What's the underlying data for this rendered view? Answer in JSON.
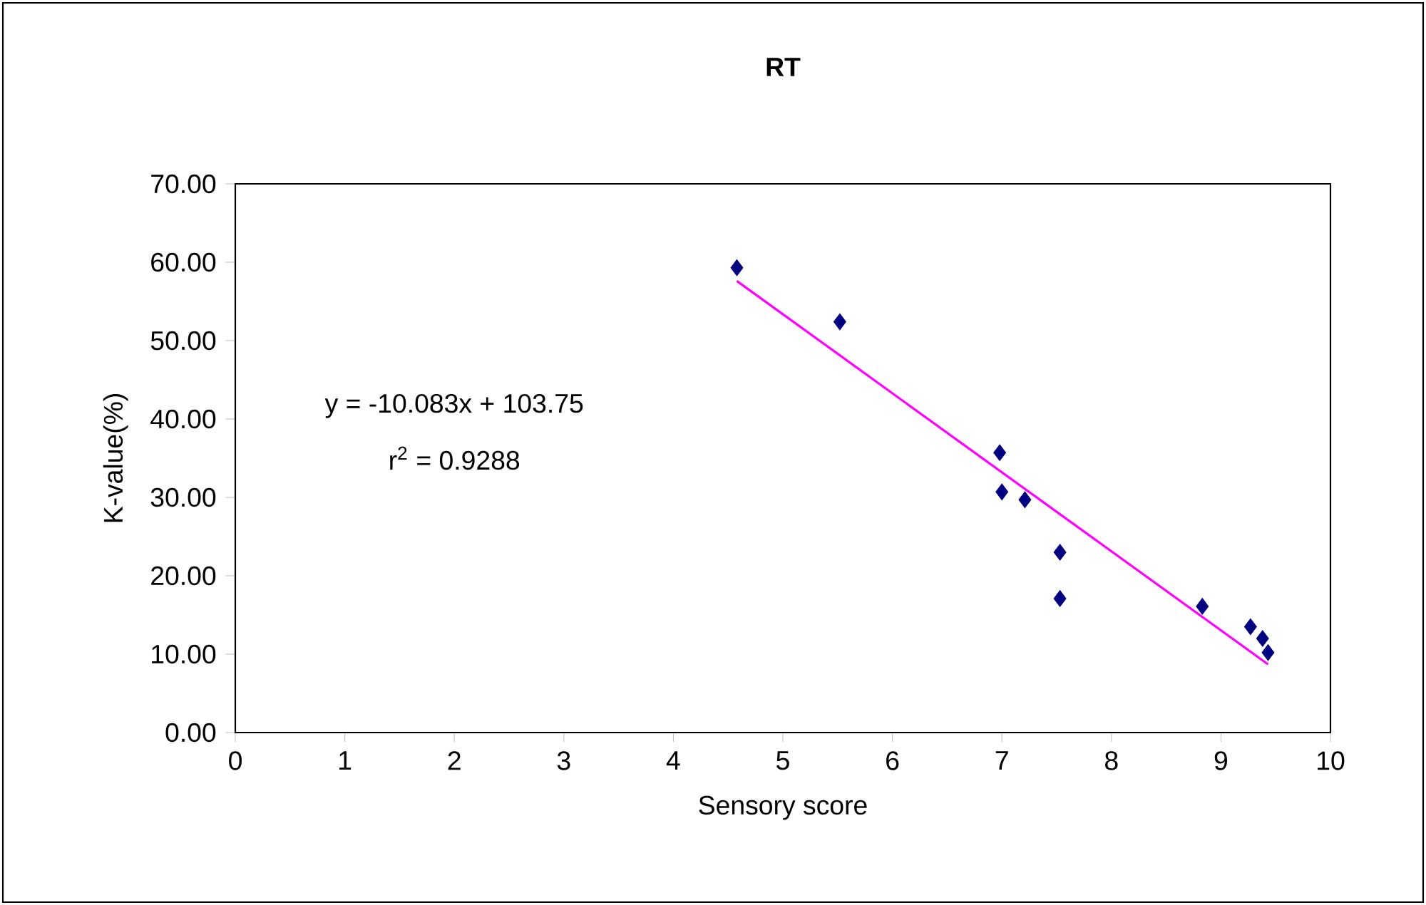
{
  "chart_data": {
    "type": "scatter",
    "title": "RT",
    "xlabel": "Sensory score",
    "ylabel": "K-value(%)",
    "annotations": [
      "y = -10.083x + 103.75",
      "r$^{2}$ = 0.9288"
    ],
    "series": [
      {
        "marker": "diamond",
        "color": "#000080",
        "x": [
          4.58,
          5.52,
          6.98,
          7.0,
          7.21,
          7.53,
          7.53,
          8.83,
          9.27,
          9.38,
          9.43
        ],
        "values": [
          59.3,
          52.4,
          35.7,
          30.7,
          29.7,
          23.0,
          17.1,
          16.1,
          13.5,
          12.0,
          10.2
        ]
      },
      {
        "type": "line",
        "color": "#ff00ff",
        "x": [
          4.58,
          9.43
        ],
        "values": [
          57.6,
          8.7
        ]
      }
    ],
    "xlim": [
      0,
      10
    ],
    "xticks": [
      0,
      1,
      2,
      3,
      4,
      5,
      6,
      7,
      8,
      9,
      10
    ],
    "ylim": [
      0,
      70
    ],
    "yticks": [
      {
        "value": 0,
        "label": "0.00"
      },
      {
        "value": 10,
        "label": "10.00"
      },
      {
        "value": 20,
        "label": "20.00"
      },
      {
        "value": 30,
        "label": "30.00"
      },
      {
        "value": 40,
        "label": "40.00"
      },
      {
        "value": 50,
        "label": "50.00"
      },
      {
        "value": 60,
        "label": "60.00"
      },
      {
        "value": 70,
        "label": "70.00"
      }
    ],
    "grid": false
  }
}
